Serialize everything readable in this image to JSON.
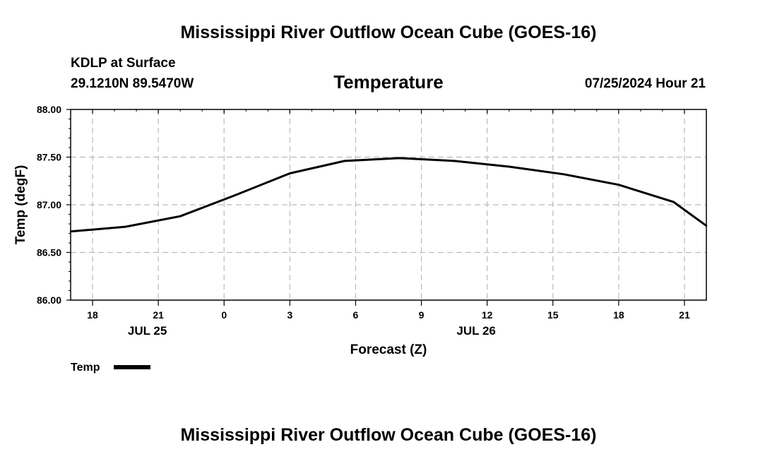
{
  "chart_data": {
    "type": "line",
    "title": "Mississippi River Outflow Ocean Cube (GOES-16)",
    "footer_title": "Mississippi River Outflow Ocean Cube (GOES-16)",
    "station": "KDLP at Surface",
    "location": "29.1210N  89.5470W",
    "variable": "Temperature",
    "valid_time": "07/25/2024 Hour 21",
    "xlabel": "Forecast (Z)",
    "ylabel": "Temp (degF)",
    "ylim": [
      86.0,
      88.0
    ],
    "y_ticks": [
      {
        "value": 86.0,
        "label": "86.00"
      },
      {
        "value": 86.5,
        "label": "86.50"
      },
      {
        "value": 87.0,
        "label": "87.00"
      },
      {
        "value": 87.5,
        "label": "87.50"
      },
      {
        "value": 88.0,
        "label": "88.00"
      }
    ],
    "xlim_hours": [
      -7,
      22
    ],
    "x_ticks": [
      {
        "hours": -6,
        "label": "18"
      },
      {
        "hours": -3,
        "label": "21"
      },
      {
        "hours": 0,
        "label": "0"
      },
      {
        "hours": 3,
        "label": "3"
      },
      {
        "hours": 6,
        "label": "6"
      },
      {
        "hours": 9,
        "label": "9"
      },
      {
        "hours": 12,
        "label": "12"
      },
      {
        "hours": 15,
        "label": "15"
      },
      {
        "hours": 18,
        "label": "18"
      },
      {
        "hours": 21,
        "label": "21"
      }
    ],
    "date_labels": [
      {
        "hours": -3.5,
        "label": "JUL 25"
      },
      {
        "hours": 11.5,
        "label": "JUL 26"
      }
    ],
    "grid": true,
    "legend": {
      "position": "bottom-left",
      "entries": [
        {
          "name": "Temp",
          "color": "#000000"
        }
      ]
    },
    "series": [
      {
        "name": "Temp",
        "color": "#000000",
        "x_hours": [
          -7,
          -4.5,
          -2,
          0.5,
          3,
          5.5,
          8,
          10.5,
          13,
          15.5,
          18,
          20.5,
          22
        ],
        "values": [
          86.72,
          86.77,
          86.88,
          87.1,
          87.33,
          87.46,
          87.49,
          87.46,
          87.4,
          87.32,
          87.21,
          87.03,
          86.78
        ]
      }
    ]
  },
  "colors": {
    "line": "#000000",
    "grid": "#bbbbbb",
    "axis": "#000000",
    "background": "#ffffff"
  }
}
